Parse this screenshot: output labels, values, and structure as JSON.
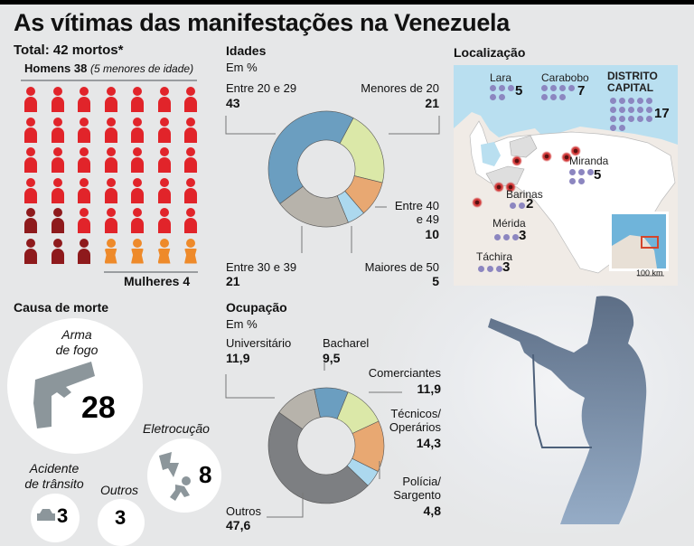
{
  "title": "As vítimas das manifestações na Venezuela",
  "total": {
    "label": "Total: 42 mortos*",
    "men_label": "Homens 38",
    "men_note": "(5 menores de idade)",
    "women_label": "Mulheres 4",
    "grid_columns": 7,
    "grid_rows": 6,
    "people": [
      "m",
      "m",
      "m",
      "m",
      "m",
      "m",
      "m",
      "m",
      "m",
      "m",
      "m",
      "m",
      "m",
      "m",
      "m",
      "m",
      "m",
      "m",
      "m",
      "m",
      "m",
      "m",
      "m",
      "m",
      "m",
      "m",
      "m",
      "m",
      "minor",
      "minor",
      "m",
      "m",
      "m",
      "m",
      "m",
      "minor",
      "minor",
      "minor",
      "f",
      "f",
      "f",
      "f"
    ],
    "colors": {
      "m": "#e1242a",
      "minor": "#8e1a1c",
      "f": "#ee8a2a"
    }
  },
  "ages": {
    "title": "Idades",
    "unit": "Em %",
    "chart_data": {
      "type": "pie",
      "title": "Idades",
      "unit": "Em %",
      "slices": [
        {
          "label": "Menores de 20",
          "value": 21,
          "color": "#dbe8a8"
        },
        {
          "label": "Entre 40 e 49",
          "value": 10,
          "color": "#e8a872"
        },
        {
          "label": "Maiores de 50",
          "value": 5,
          "color": "#acd8ee"
        },
        {
          "label": "Entre 30 e 39",
          "value": 21,
          "color": "#b7b3ab"
        },
        {
          "label": "Entre 20 e 29",
          "value": 43,
          "color": "#6b9ec0"
        }
      ]
    },
    "labels": {
      "a2029": "Entre 20 e 29",
      "v2029": "43",
      "amen20": "Menores de 20",
      "vmen20": "21",
      "a4049_1": "Entre 40",
      "a4049_2": "e 49",
      "v4049": "10",
      "a3039": "Entre 30 e 39",
      "v3039": "21",
      "amai50": "Maiores de 50",
      "vmai50": "5"
    }
  },
  "location": {
    "title": "Localização",
    "regions": [
      {
        "name": "Lara",
        "count": 5
      },
      {
        "name": "Carabobo",
        "count": 7
      },
      {
        "name": "DISTRITO CAPITAL",
        "name1": "DISTRITO",
        "name2": "CAPITAL",
        "count": 17
      },
      {
        "name": "Miranda",
        "count": 5
      },
      {
        "name": "Barinas",
        "count": 2
      },
      {
        "name": "Mérida",
        "count": 3
      },
      {
        "name": "Táchira",
        "count": 3
      }
    ],
    "scale": "100 km"
  },
  "causes": {
    "title": "Causa de morte",
    "items": [
      {
        "label1": "Arma",
        "label2": "de fogo",
        "value": "28",
        "icon": "pistol-icon"
      },
      {
        "label1": "Eletrocução",
        "label2": "",
        "value": "8",
        "icon": "electrocution-icon"
      },
      {
        "label1": "Acidente",
        "label2": "de trânsito",
        "value": "3",
        "icon": "car-icon"
      },
      {
        "label1": "Outros",
        "label2": "",
        "value": "3",
        "icon": ""
      }
    ]
  },
  "occupation": {
    "title": "Ocupação",
    "unit": "Em %",
    "chart_data": {
      "type": "pie",
      "title": "Ocupação",
      "unit": "Em %",
      "slices": [
        {
          "label": "Bacharel",
          "value": 9.5,
          "color": "#6b9ec0"
        },
        {
          "label": "Comerciantes",
          "value": 11.9,
          "color": "#dbe8a8"
        },
        {
          "label": "Técnicos/ Operários",
          "value": 14.3,
          "color": "#e8a872"
        },
        {
          "label": "Polícia/ Sargento",
          "value": 4.8,
          "color": "#acd8ee"
        },
        {
          "label": "Outros",
          "value": 47.6,
          "color": "#7d7f82"
        },
        {
          "label": "Universitário",
          "value": 11.9,
          "color": "#b7b3ab"
        }
      ]
    },
    "labels": {
      "univ": "Universitário",
      "vuniv": "11,9",
      "bach": "Bacharel",
      "vbach": "9,5",
      "com": "Comerciantes",
      "vcom": "11,9",
      "tec1": "Técnicos/",
      "tec2": "Operários",
      "vtec": "14,3",
      "pol1": "Polícia/",
      "pol2": "Sargento",
      "vpol": "4,8",
      "out": "Outros",
      "vout": "47,6"
    }
  }
}
